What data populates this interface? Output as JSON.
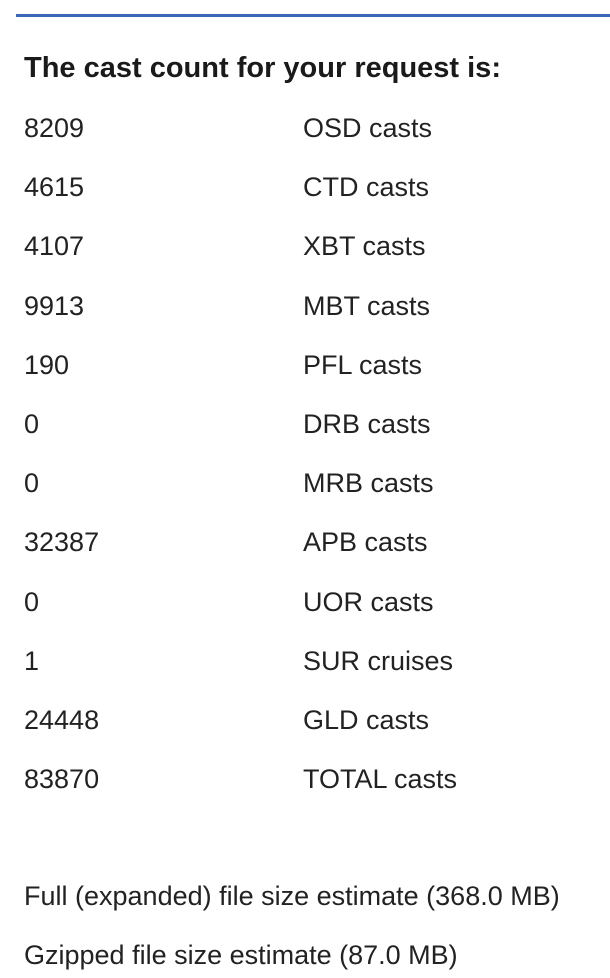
{
  "colors": {
    "accent_rule": "#3a67b8",
    "text": "#222222"
  },
  "heading": "The cast count for your request is:",
  "casts": [
    {
      "count": "8209",
      "type": "OSD casts"
    },
    {
      "count": "4615",
      "type": "CTD casts"
    },
    {
      "count": "4107",
      "type": "XBT casts"
    },
    {
      "count": "9913",
      "type": "MBT casts"
    },
    {
      "count": "190",
      "type": "PFL casts"
    },
    {
      "count": "0",
      "type": "DRB casts"
    },
    {
      "count": "0",
      "type": "MRB casts"
    },
    {
      "count": "32387",
      "type": "APB casts"
    },
    {
      "count": "0",
      "type": "UOR casts"
    },
    {
      "count": "1",
      "type": "SUR cruises"
    },
    {
      "count": "24448",
      "type": "GLD casts"
    },
    {
      "count": "83870",
      "type": "TOTAL casts"
    }
  ],
  "file_sizes": {
    "full": "Full (expanded) file size estimate (368.0 MB)",
    "gzipped": "Gzipped file size estimate (87.0 MB)"
  }
}
